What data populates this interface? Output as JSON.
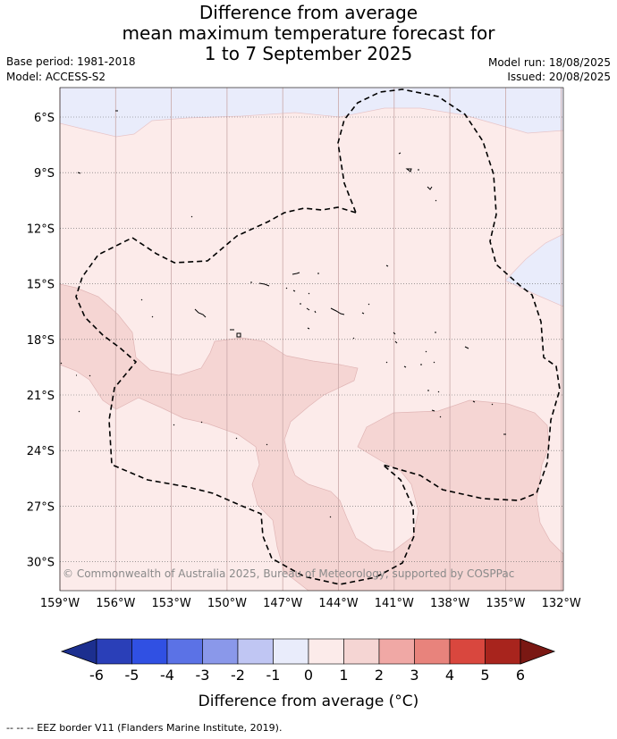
{
  "title": {
    "line1": "Difference from average",
    "line2": "mean maximum temperature forecast for",
    "line3": "1 to 7 September 2025"
  },
  "meta": {
    "base_period": "Base period: 1981-2018",
    "model": "Model: ACCESS-S2",
    "model_run": "Model run: 18/08/2025",
    "issued": "Issued: 20/08/2025"
  },
  "map": {
    "copyright": "© Commonwealth of Australia 2025, Bureau of Meteorology, supported by COSPPac",
    "lat_labels": [
      "6°S",
      "9°S",
      "12°S",
      "15°S",
      "18°S",
      "21°S",
      "24°S",
      "27°S",
      "30°S"
    ],
    "lon_labels": [
      "159°W",
      "156°W",
      "153°W",
      "150°W",
      "147°W",
      "144°W",
      "141°W",
      "138°W",
      "135°W",
      "132°W"
    ],
    "colors": {
      "band_m1_0": "#e9ecfb",
      "band_0_1": "#fcebea",
      "band_1_2": "#f5d5d3"
    }
  },
  "colorbar": {
    "ticks": [
      "-6",
      "-5",
      "-4",
      "-3",
      "-2",
      "-1",
      "0",
      "1",
      "2",
      "3",
      "4",
      "5",
      "6"
    ],
    "label": "Difference from average (°C)",
    "colors": [
      "#1c2f8f",
      "#2a3fb8",
      "#3050e3",
      "#5b72e6",
      "#8a98ea",
      "#c0c6f3",
      "#e9ecfb",
      "#fcebea",
      "#f5d5d3",
      "#f0a8a5",
      "#e8837c",
      "#d9473e",
      "#a8241d",
      "#7a1813"
    ]
  },
  "footer": {
    "eez_legend": "--  --  -- EEZ border V11 (Flanders Marine Institute, 2019)."
  }
}
